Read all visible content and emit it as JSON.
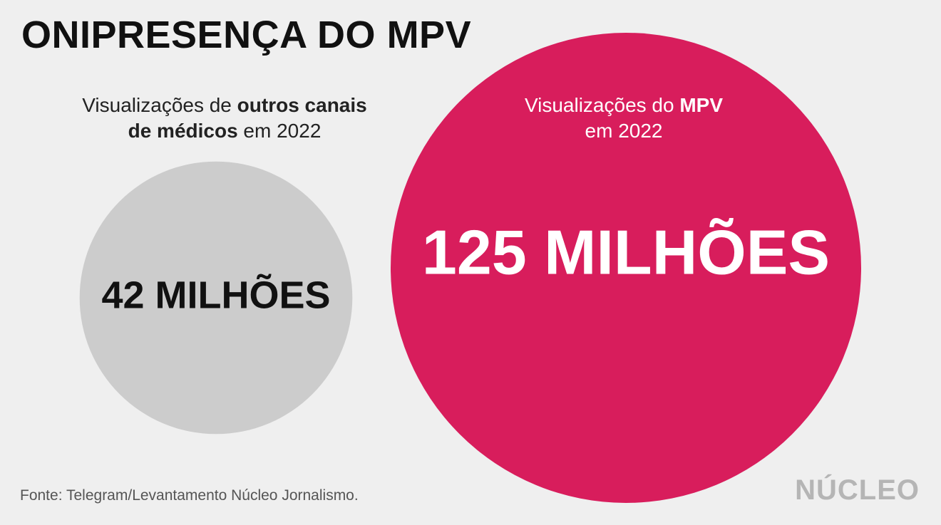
{
  "title": "ONIPRESENÇA DO MPV",
  "captions": {
    "left": {
      "pre": "Visualizações de ",
      "bold": "outros canais de médicos",
      "post": " em 2022"
    },
    "right": {
      "pre": "Visualizações do ",
      "bold": "MPV",
      "post": " em 2022"
    }
  },
  "source": "Fonte: Telegram/Levantamento Núcleo Jornalismo.",
  "logo": "NÚCLEO",
  "colors": {
    "background": "#efefef",
    "other": "#cccccc",
    "mpv": "#d81d5c",
    "label_dark": "#111111",
    "label_light": "#ffffff"
  },
  "chart_data": {
    "type": "bubble",
    "unit": "milhões de visualizações",
    "categories": [
      "Outros canais de médicos",
      "MPV"
    ],
    "values": [
      42,
      125
    ],
    "labels": [
      "42 MILHÕES",
      "125 MILHÕES"
    ],
    "colors": [
      "#cccccc",
      "#d81d5c"
    ]
  }
}
